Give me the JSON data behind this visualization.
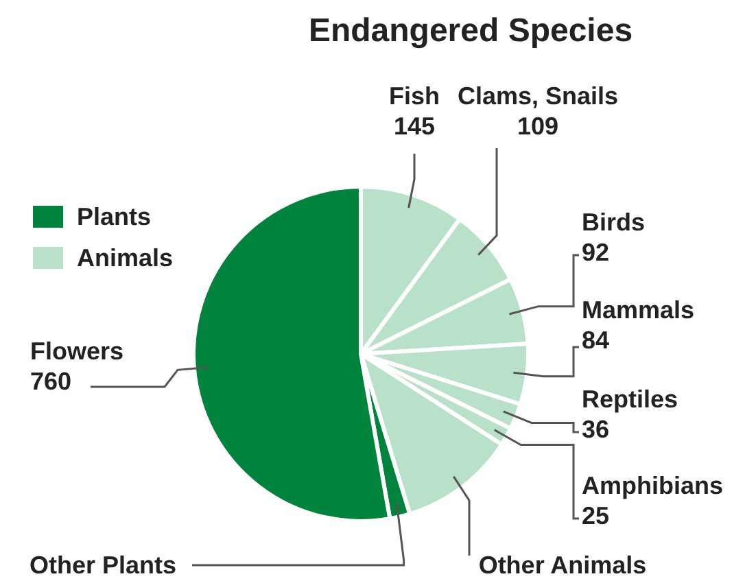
{
  "chart_data": {
    "type": "pie",
    "title": "Endangered Species",
    "categories": [
      "Fish",
      "Clams, Snails",
      "Birds",
      "Mammals",
      "Reptiles",
      "Amphibians",
      "Other Animals",
      "Other Plants",
      "Flowers"
    ],
    "values": [
      145,
      109,
      92,
      84,
      36,
      25,
      161,
      28,
      760
    ],
    "colors": [
      "#b9e0c8",
      "#b9e0c8",
      "#b9e0c8",
      "#b9e0c8",
      "#b9e0c8",
      "#b9e0c8",
      "#b9e0c8",
      "#00843d",
      "#00843d"
    ],
    "value_labels": [
      "145",
      "109",
      "92",
      "84",
      "36",
      "25",
      null,
      null,
      "760"
    ],
    "annotations": [
      "Plants",
      "Animals"
    ]
  }
}
